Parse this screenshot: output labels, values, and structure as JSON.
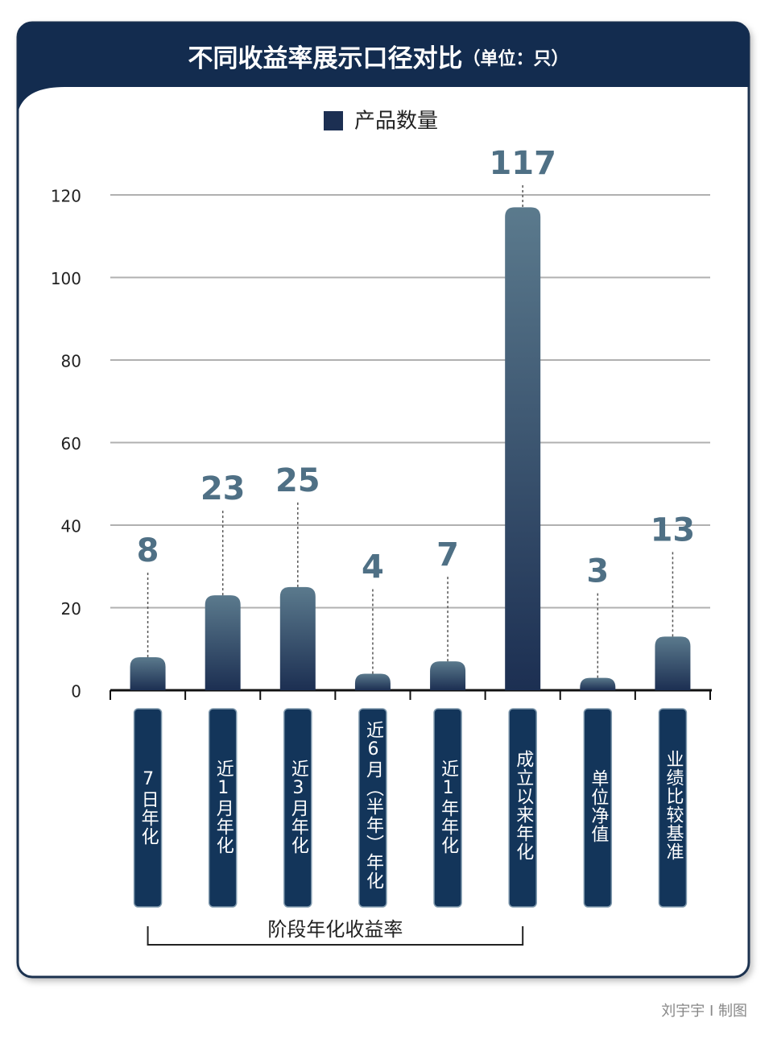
{
  "chart_data": {
    "type": "bar",
    "title": "不同收益率展示口径对比",
    "unit": "（单位：只）",
    "categories": [
      "7日年化",
      "近1月年化",
      "近3月年化",
      "近6月（半年）年化",
      "近1年年化",
      "成立以来年化",
      "单位净值",
      "业绩比较基准"
    ],
    "series": [
      {
        "name": "产品数量",
        "color": "#1c2f52",
        "values": [
          8,
          23,
          25,
          4,
          7,
          117,
          3,
          13
        ]
      }
    ],
    "ylim": [
      0,
      120
    ],
    "yticks": [
      0,
      20,
      40,
      60,
      80,
      100,
      120
    ],
    "grid": true,
    "annotation": "阶段年化收益率",
    "credit": "刘宇宇 I 制图"
  }
}
